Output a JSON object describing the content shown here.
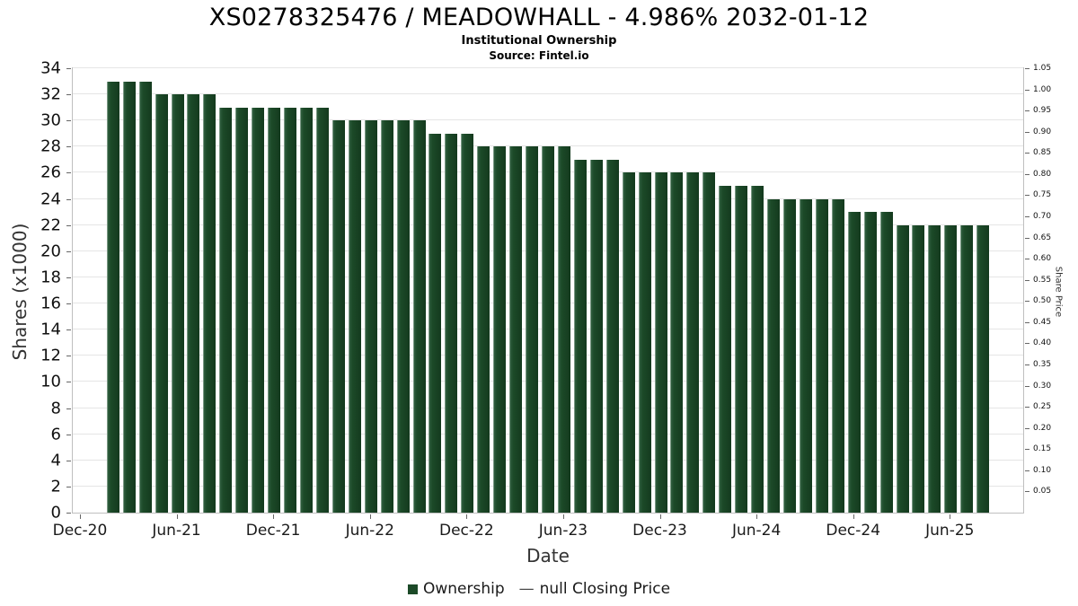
{
  "chart_data": {
    "type": "bar",
    "title": "XS0278325476 / MEADOWHALL - 4.986% 2032-01-12",
    "subtitle": "Institutional Ownership",
    "source": "Source: Fintel.io",
    "xlabel": "Date",
    "ylabel": "Shares (x1000)",
    "ylabel_right": "Share Price",
    "series_name": "Ownership",
    "categories": [
      "Feb-21",
      "Mar-21",
      "Apr-21",
      "May-21",
      "Jun-21",
      "Jul-21",
      "Aug-21",
      "Sep-21",
      "Oct-21",
      "Nov-21",
      "Dec-21",
      "Jan-22",
      "Feb-22",
      "Mar-22",
      "Apr-22",
      "May-22",
      "Jun-22",
      "Jul-22",
      "Aug-22",
      "Sep-22",
      "Oct-22",
      "Nov-22",
      "Dec-22",
      "Jan-23",
      "Feb-23",
      "Mar-23",
      "Apr-23",
      "May-23",
      "Jun-23",
      "Jul-23",
      "Aug-23",
      "Sep-23",
      "Oct-23",
      "Nov-23",
      "Dec-23",
      "Jan-24",
      "Feb-24",
      "Mar-24",
      "Apr-24",
      "May-24",
      "Jun-24",
      "Jul-24",
      "Aug-24",
      "Sep-24",
      "Oct-24",
      "Nov-24",
      "Dec-24",
      "Jan-25",
      "Feb-25",
      "Mar-25",
      "Apr-25",
      "May-25",
      "Jun-25",
      "Jul-25",
      "Aug-25"
    ],
    "values": [
      33,
      33,
      33,
      32,
      32,
      32,
      32,
      31,
      31,
      31,
      31,
      31,
      31,
      31,
      30,
      30,
      30,
      30,
      30,
      30,
      29,
      29,
      29,
      28,
      28,
      28,
      28,
      28,
      28,
      27,
      27,
      27,
      26,
      26,
      26,
      26,
      26,
      26,
      25,
      25,
      25,
      24,
      24,
      24,
      24,
      24,
      23,
      23,
      23,
      22,
      22,
      22,
      22,
      22,
      22
    ],
    "x_axis": {
      "total_months": 59,
      "bar_start_month_index": 2,
      "ticks": [
        {
          "label": "Dec-20",
          "month": 0
        },
        {
          "label": "Jun-21",
          "month": 6
        },
        {
          "label": "Dec-21",
          "month": 12
        },
        {
          "label": "Jun-22",
          "month": 18
        },
        {
          "label": "Dec-22",
          "month": 24
        },
        {
          "label": "Jun-23",
          "month": 30
        },
        {
          "label": "Dec-23",
          "month": 36
        },
        {
          "label": "Jun-24",
          "month": 42
        },
        {
          "label": "Dec-24",
          "month": 48
        },
        {
          "label": "Jun-25",
          "month": 54
        }
      ]
    },
    "y_left": {
      "min": 0,
      "max": 34,
      "tick_step": 2
    },
    "y_right": {
      "min": 0,
      "max": 1.05,
      "tick_step": 0.05
    },
    "grid": true,
    "legend_position": "bottom"
  },
  "legend": {
    "ownership_label": "Ownership",
    "price_dash": "—",
    "price_label": "null Closing Price"
  },
  "colors": {
    "bar": "#1C4A28",
    "grid": "#E5E5E5",
    "plot_border": "#BFBFBF",
    "tick_text": "#111111",
    "axis_label_text": "#333333"
  }
}
